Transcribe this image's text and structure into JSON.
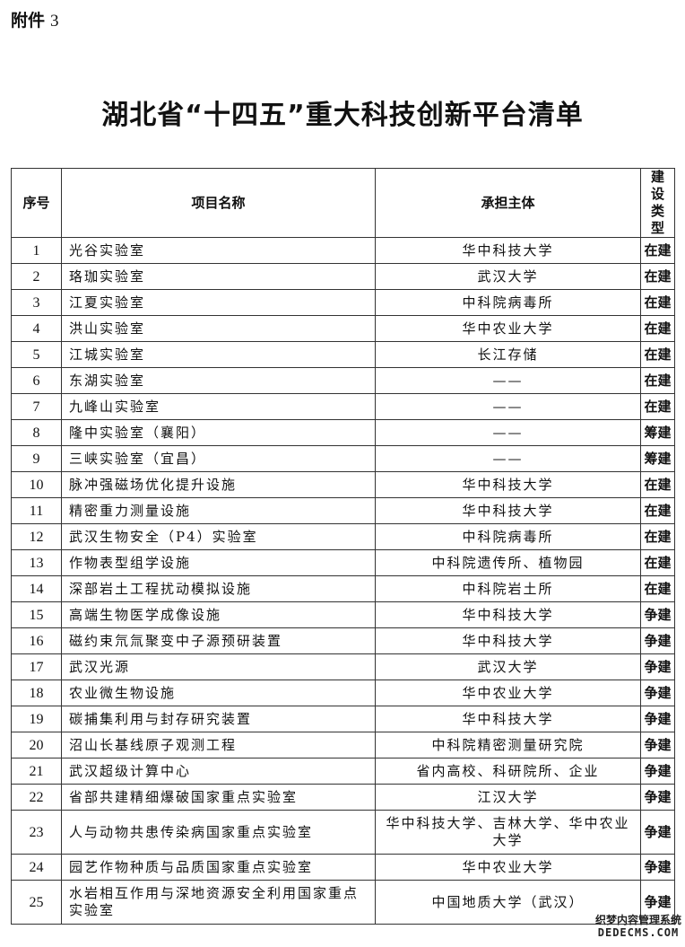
{
  "attachment": {
    "label": "附件",
    "number": "3"
  },
  "title": "湖北省“十四五”重大科技创新平台清单",
  "table": {
    "headers": [
      "序号",
      "项目名称",
      "承担主体",
      "建设类型"
    ],
    "rows": [
      [
        "1",
        "光谷实验室",
        "华中科技大学",
        "在建"
      ],
      [
        "2",
        "珞珈实验室",
        "武汉大学",
        "在建"
      ],
      [
        "3",
        "江夏实验室",
        "中科院病毒所",
        "在建"
      ],
      [
        "4",
        "洪山实验室",
        "华中农业大学",
        "在建"
      ],
      [
        "5",
        "江城实验室",
        "长江存储",
        "在建"
      ],
      [
        "6",
        "东湖实验室",
        "——",
        "在建"
      ],
      [
        "7",
        "九峰山实验室",
        "——",
        "在建"
      ],
      [
        "8",
        "隆中实验室（襄阳）",
        "——",
        "筹建"
      ],
      [
        "9",
        "三峡实验室（宜昌）",
        "——",
        "筹建"
      ],
      [
        "10",
        "脉冲强磁场优化提升设施",
        "华中科技大学",
        "在建"
      ],
      [
        "11",
        "精密重力测量设施",
        "华中科技大学",
        "在建"
      ],
      [
        "12",
        "武汉生物安全（P4）实验室",
        "中科院病毒所",
        "在建"
      ],
      [
        "13",
        "作物表型组学设施",
        "中科院遗传所、植物园",
        "在建"
      ],
      [
        "14",
        "深部岩土工程扰动模拟设施",
        "中科院岩土所",
        "在建"
      ],
      [
        "15",
        "高端生物医学成像设施",
        "华中科技大学",
        "争建"
      ],
      [
        "16",
        "磁约束氘氚聚变中子源预研装置",
        "华中科技大学",
        "争建"
      ],
      [
        "17",
        "武汉光源",
        "武汉大学",
        "争建"
      ],
      [
        "18",
        "农业微生物设施",
        "华中农业大学",
        "争建"
      ],
      [
        "19",
        "碳捕集利用与封存研究装置",
        "华中科技大学",
        "争建"
      ],
      [
        "20",
        "沼山长基线原子观测工程",
        "中科院精密测量研究院",
        "争建"
      ],
      [
        "21",
        "武汉超级计算中心",
        "省内高校、科研院所、企业",
        "争建"
      ],
      [
        "22",
        "省部共建精细爆破国家重点实验室",
        "江汉大学",
        "争建"
      ],
      [
        "23",
        "人与动物共患传染病国家重点实验室",
        "华中科技大学、吉林大学、华中农业大学",
        "争建"
      ],
      [
        "24",
        "园艺作物种质与品质国家重点实验室",
        "华中农业大学",
        "争建"
      ],
      [
        "25",
        "水岩相互作用与深地资源安全利用国家重点实验室",
        "中国地质大学（武汉）",
        "争建"
      ]
    ]
  },
  "watermark": {
    "line1": "织梦内容管理系统",
    "line2": "DEDECMS.COM"
  }
}
